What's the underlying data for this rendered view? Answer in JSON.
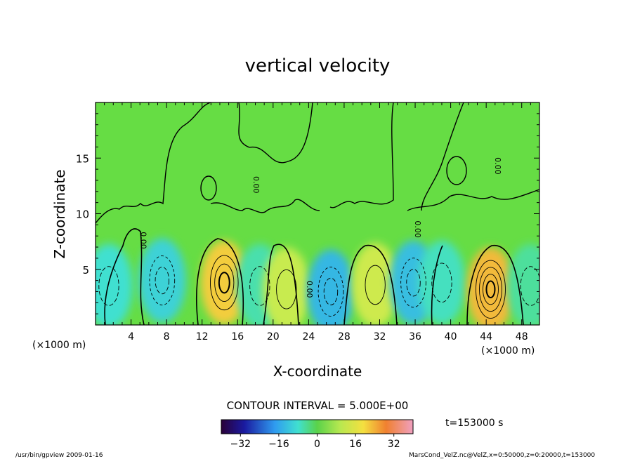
{
  "chart_data": {
    "type": "heatmap",
    "title": "vertical velocity",
    "xlabel": "X-coordinate",
    "ylabel": "Z-coordinate",
    "x_unit_left": "(×1000 m)",
    "x_unit_right": "(×1000 m)",
    "xlim": [
      0,
      50
    ],
    "ylim": [
      0,
      20
    ],
    "x_ticks": [
      4,
      8,
      12,
      16,
      20,
      24,
      28,
      32,
      36,
      40,
      44,
      48
    ],
    "y_ticks": [
      5,
      10,
      15
    ],
    "contour_interval_text": "CONTOUR INTERVAL = 5.000E+00",
    "contour_labels": [
      {
        "x": 17.8,
        "z": 12.6,
        "text": "0.00"
      },
      {
        "x": 23.8,
        "z": 3.2,
        "text": "0.00"
      },
      {
        "x": 36.0,
        "z": 8.6,
        "text": "0.00"
      },
      {
        "x": 45.0,
        "z": 14.3,
        "text": "0.00"
      },
      {
        "x": 5.1,
        "z": 7.6,
        "text": "0.00"
      }
    ],
    "cells": [
      {
        "x": 1.5,
        "z": 3.5,
        "value": -8
      },
      {
        "x": 7.5,
        "z": 4.0,
        "value": -10
      },
      {
        "x": 14.5,
        "z": 3.8,
        "value": 18
      },
      {
        "x": 18.5,
        "z": 3.5,
        "value": -6
      },
      {
        "x": 21.5,
        "z": 3.2,
        "value": 8
      },
      {
        "x": 26.5,
        "z": 3.0,
        "value": -14
      },
      {
        "x": 31.5,
        "z": 3.6,
        "value": 9
      },
      {
        "x": 35.8,
        "z": 3.8,
        "value": -13
      },
      {
        "x": 39.0,
        "z": 3.8,
        "value": -7
      },
      {
        "x": 44.5,
        "z": 3.2,
        "value": 20
      },
      {
        "x": 49.0,
        "z": 3.5,
        "value": -5
      }
    ],
    "colorbar": {
      "ticks": [
        -32,
        -16,
        0,
        16,
        32
      ],
      "range": [
        -40,
        40
      ]
    },
    "time_label": "t=153000 s",
    "footer_left": "/usr/bin/gpview  2009-01-16",
    "footer_right": "MarsCond_VelZ.nc@VelZ,x=0:50000,z=0:20000,t=153000"
  }
}
